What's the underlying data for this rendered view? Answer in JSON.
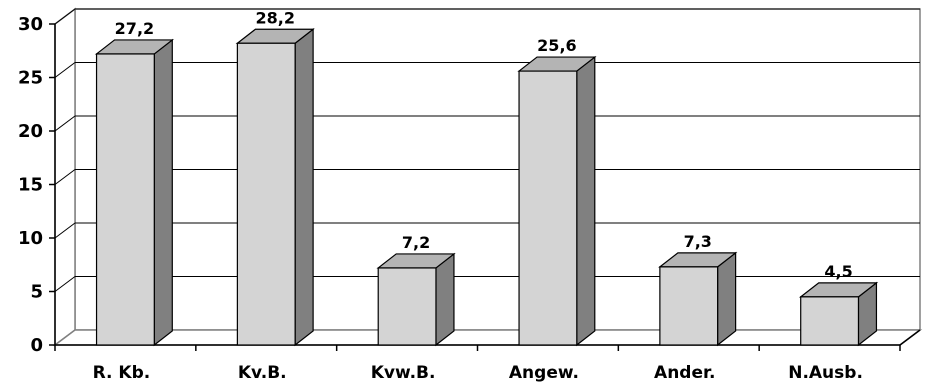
{
  "chart_data": {
    "type": "bar",
    "style": "3d-column",
    "categories": [
      "R. Kb.",
      "Kv.B.",
      "Kvw.B.",
      "Angew.",
      "Ander.",
      "N.Ausb."
    ],
    "values": [
      27.2,
      28.2,
      7.2,
      25.6,
      7.3,
      4.5
    ],
    "data_labels": [
      "27,2",
      "28,2",
      "7,2",
      "25,6",
      "7,3",
      "4,5"
    ],
    "y_ticks": [
      0,
      5,
      10,
      15,
      20,
      25,
      30
    ],
    "ylim": [
      0,
      30
    ],
    "title": "",
    "xlabel": "",
    "ylabel": "",
    "grid": true,
    "legend": "none",
    "colors": {
      "bar_front": "#d4d4d4",
      "bar_top": "#b4b4b4",
      "bar_side": "#808080",
      "wall": "#ffffff",
      "grid": "#000000",
      "wall_border": "#808080"
    }
  }
}
